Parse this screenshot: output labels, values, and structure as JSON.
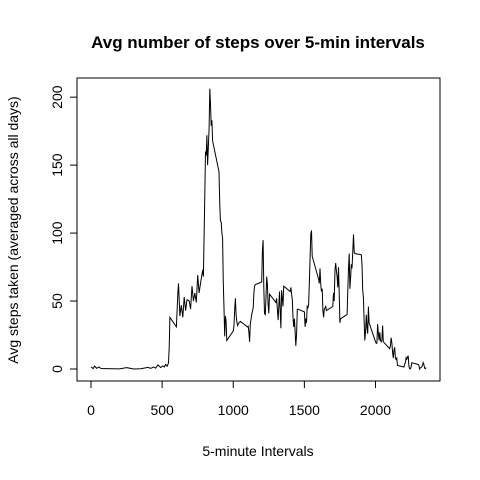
{
  "chart_data": {
    "type": "line",
    "title": "Avg number of steps over 5-min intervals",
    "xlabel": "5-minute Intervals",
    "ylabel": "Avg steps taken (averaged across all days)",
    "xlim": [
      0,
      2355
    ],
    "ylim": [
      0,
      206
    ],
    "x_ticks": [
      0,
      500,
      1000,
      1500,
      2000
    ],
    "y_ticks": [
      0,
      50,
      100,
      150,
      200
    ],
    "grid": false,
    "series": [
      {
        "color": "#000000",
        "points": [
          [
            0,
            1.7
          ],
          [
            15,
            0.3
          ],
          [
            25,
            2.1
          ],
          [
            40,
            0.5
          ],
          [
            55,
            1.5
          ],
          [
            70,
            0.4
          ],
          [
            100,
            0.3
          ],
          [
            150,
            0.2
          ],
          [
            200,
            0.1
          ],
          [
            250,
            1.0
          ],
          [
            300,
            0.0
          ],
          [
            350,
            0.2
          ],
          [
            400,
            1.2
          ],
          [
            420,
            0.5
          ],
          [
            440,
            1.5
          ],
          [
            455,
            0.6
          ],
          [
            470,
            3.0
          ],
          [
            490,
            1.0
          ],
          [
            505,
            2.3
          ],
          [
            515,
            1.5
          ],
          [
            525,
            3.4
          ],
          [
            535,
            2.0
          ],
          [
            545,
            4.5
          ],
          [
            550,
            16.0
          ],
          [
            555,
            38.0
          ],
          [
            600,
            31.0
          ],
          [
            610,
            55.0
          ],
          [
            615,
            63.0
          ],
          [
            625,
            39.0
          ],
          [
            635,
            47.0
          ],
          [
            645,
            38.0
          ],
          [
            655,
            53.0
          ],
          [
            665,
            43.0
          ],
          [
            675,
            51.0
          ],
          [
            690,
            50.0
          ],
          [
            700,
            44.0
          ],
          [
            710,
            61.0
          ],
          [
            720,
            50.0
          ],
          [
            730,
            56.0
          ],
          [
            740,
            49.0
          ],
          [
            750,
            69.0
          ],
          [
            760,
            56.0
          ],
          [
            770,
            63.0
          ],
          [
            785,
            73.0
          ],
          [
            790,
            68.0
          ],
          [
            800,
            128.0
          ],
          [
            805,
            160.0
          ],
          [
            810,
            157.0
          ],
          [
            815,
            172.0
          ],
          [
            820,
            150.0
          ],
          [
            830,
            177.0
          ],
          [
            835,
            206.2
          ],
          [
            840,
            195.0
          ],
          [
            845,
            179.0
          ],
          [
            850,
            183.0
          ],
          [
            855,
            168.0
          ],
          [
            900,
            145.0
          ],
          [
            905,
            123.0
          ],
          [
            910,
            109.0
          ],
          [
            915,
            108.0
          ],
          [
            920,
            100.0
          ],
          [
            925,
            96.0
          ],
          [
            930,
            63.0
          ],
          [
            935,
            45.0
          ],
          [
            940,
            24.0
          ],
          [
            945,
            39.0
          ],
          [
            950,
            35.0
          ],
          [
            955,
            21.0
          ],
          [
            1000,
            28.0
          ],
          [
            1005,
            32.0
          ],
          [
            1010,
            44.0
          ],
          [
            1015,
            52.0
          ],
          [
            1020,
            40.0
          ],
          [
            1025,
            35.0
          ],
          [
            1030,
            32.0
          ],
          [
            1040,
            34.0
          ],
          [
            1050,
            35.0
          ],
          [
            1100,
            31.0
          ],
          [
            1105,
            31.5
          ],
          [
            1110,
            27.0
          ],
          [
            1115,
            20.0
          ],
          [
            1120,
            33.0
          ],
          [
            1130,
            40.0
          ],
          [
            1140,
            45.0
          ],
          [
            1145,
            56.0
          ],
          [
            1150,
            61.0
          ],
          [
            1155,
            62.0
          ],
          [
            1200,
            64.0
          ],
          [
            1205,
            87.0
          ],
          [
            1210,
            94.8
          ],
          [
            1215,
            60.0
          ],
          [
            1220,
            41.0
          ],
          [
            1225,
            40.0
          ],
          [
            1230,
            53.0
          ],
          [
            1235,
            68.0
          ],
          [
            1240,
            62.0
          ],
          [
            1245,
            48.0
          ],
          [
            1250,
            41.0
          ],
          [
            1255,
            55.0
          ],
          [
            1300,
            49.0
          ],
          [
            1305,
            52.0
          ],
          [
            1310,
            45.0
          ],
          [
            1315,
            36.0
          ],
          [
            1320,
            46.0
          ],
          [
            1325,
            57.0
          ],
          [
            1330,
            43.0
          ],
          [
            1335,
            30.0
          ],
          [
            1340,
            58.0
          ],
          [
            1345,
            52.0
          ],
          [
            1350,
            46.0
          ],
          [
            1355,
            61.0
          ],
          [
            1400,
            57.0
          ],
          [
            1405,
            60.0
          ],
          [
            1410,
            55.0
          ],
          [
            1415,
            51.0
          ],
          [
            1420,
            38.0
          ],
          [
            1425,
            31.0
          ],
          [
            1430,
            37.0
          ],
          [
            1435,
            28.0
          ],
          [
            1440,
            17.0
          ],
          [
            1445,
            26.0
          ],
          [
            1450,
            44.0
          ],
          [
            1455,
            44.0
          ],
          [
            1500,
            42.0
          ],
          [
            1505,
            31.0
          ],
          [
            1510,
            37.0
          ],
          [
            1515,
            34.0
          ],
          [
            1520,
            46.0
          ],
          [
            1525,
            45.0
          ],
          [
            1530,
            47.0
          ],
          [
            1535,
            65.0
          ],
          [
            1540,
            82.0
          ],
          [
            1545,
            99.0
          ],
          [
            1550,
            102.0
          ],
          [
            1555,
            83.0
          ],
          [
            1600,
            66.0
          ],
          [
            1605,
            63.0
          ],
          [
            1610,
            74.0
          ],
          [
            1615,
            63.0
          ],
          [
            1620,
            57.0
          ],
          [
            1625,
            59.0
          ],
          [
            1630,
            43.0
          ],
          [
            1635,
            38.0
          ],
          [
            1640,
            44.0
          ],
          [
            1645,
            45.0
          ],
          [
            1650,
            46.0
          ],
          [
            1655,
            43.0
          ],
          [
            1700,
            46.0
          ],
          [
            1705,
            56.0
          ],
          [
            1710,
            50.0
          ],
          [
            1715,
            73.0
          ],
          [
            1720,
            78.0
          ],
          [
            1725,
            72.0
          ],
          [
            1730,
            68.0
          ],
          [
            1735,
            60.0
          ],
          [
            1740,
            75.0
          ],
          [
            1745,
            56.0
          ],
          [
            1750,
            34.0
          ],
          [
            1755,
            37.0
          ],
          [
            1800,
            40.0
          ],
          [
            1805,
            58.0
          ],
          [
            1810,
            74.0
          ],
          [
            1815,
            85.0
          ],
          [
            1820,
            59.0
          ],
          [
            1825,
            67.0
          ],
          [
            1830,
            77.0
          ],
          [
            1835,
            74.0
          ],
          [
            1840,
            85.0
          ],
          [
            1845,
            99.0
          ],
          [
            1850,
            86.0
          ],
          [
            1855,
            85.0
          ],
          [
            1900,
            84.0
          ],
          [
            1905,
            77.0
          ],
          [
            1910,
            58.0
          ],
          [
            1915,
            53.0
          ],
          [
            1920,
            36.0
          ],
          [
            1925,
            21.0
          ],
          [
            1930,
            27.0
          ],
          [
            1935,
            40.0
          ],
          [
            1940,
            30.0
          ],
          [
            1945,
            26.0
          ],
          [
            1950,
            46.0
          ],
          [
            1955,
            34.0
          ],
          [
            2000,
            20.0
          ],
          [
            2005,
            19.0
          ],
          [
            2010,
            19.0
          ],
          [
            2015,
            33.0
          ],
          [
            2020,
            27.0
          ],
          [
            2025,
            21.0
          ],
          [
            2030,
            27.0
          ],
          [
            2035,
            21.0
          ],
          [
            2040,
            20.0
          ],
          [
            2045,
            21.0
          ],
          [
            2050,
            32.0
          ],
          [
            2055,
            20.0
          ],
          [
            2100,
            15.0
          ],
          [
            2105,
            17.0
          ],
          [
            2110,
            23.0
          ],
          [
            2115,
            19.0
          ],
          [
            2120,
            12.0
          ],
          [
            2125,
            8.0
          ],
          [
            2130,
            14.0
          ],
          [
            2135,
            16.0
          ],
          [
            2140,
            8.0
          ],
          [
            2145,
            7.0
          ],
          [
            2150,
            8.0
          ],
          [
            2155,
            2.6
          ],
          [
            2200,
            1.5
          ],
          [
            2205,
            3.7
          ],
          [
            2210,
            4.7
          ],
          [
            2215,
            8.3
          ],
          [
            2220,
            7.2
          ],
          [
            2225,
            8.7
          ],
          [
            2230,
            9.8
          ],
          [
            2235,
            2.2
          ],
          [
            2240,
            0.3
          ],
          [
            2245,
            0.1
          ],
          [
            2250,
            1.6
          ],
          [
            2255,
            4.6
          ],
          [
            2300,
            3.3
          ],
          [
            2305,
            2.8
          ],
          [
            2310,
            0.0
          ],
          [
            2315,
            0.8
          ],
          [
            2320,
            1.0
          ],
          [
            2325,
            1.6
          ],
          [
            2330,
            2.6
          ],
          [
            2335,
            4.7
          ],
          [
            2340,
            3.3
          ],
          [
            2345,
            0.6
          ],
          [
            2350,
            0.2
          ],
          [
            2355,
            1.1
          ]
        ]
      }
    ]
  }
}
